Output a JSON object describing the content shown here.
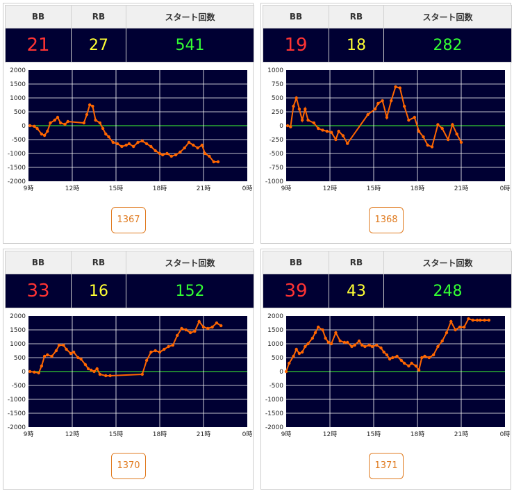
{
  "headers": {
    "bb": "BB",
    "rb": "RB",
    "start": "スタート回数"
  },
  "chart_data": [
    {
      "type": "line",
      "ylim": [
        -2000,
        2000
      ],
      "yticks": [
        2000,
        1500,
        1000,
        500,
        0,
        -500,
        -1000,
        -1500,
        -2000
      ],
      "xticks": [
        "9時",
        "12時",
        "15時",
        "18時",
        "21時",
        "0時"
      ],
      "xlim": [
        9,
        24
      ],
      "stats": {
        "bb": "21",
        "rb": "27",
        "start": "541"
      },
      "machine": "1367",
      "x": [
        9.1,
        9.4,
        9.6,
        9.9,
        10.1,
        10.3,
        10.5,
        10.8,
        11.0,
        11.2,
        11.5,
        11.7,
        12.8,
        13.0,
        13.2,
        13.4,
        13.6,
        13.9,
        14.1,
        14.3,
        14.5,
        14.8,
        15.1,
        15.4,
        15.7,
        15.9,
        16.2,
        16.5,
        16.8,
        17.1,
        17.4,
        17.7,
        18.0,
        18.2,
        18.5,
        18.8,
        19.1,
        19.4,
        19.7,
        20.0,
        20.3,
        20.6,
        20.9,
        21.1,
        21.4,
        21.7,
        22.0
      ],
      "y": [
        0,
        -20,
        -100,
        -300,
        -350,
        -200,
        100,
        200,
        300,
        100,
        50,
        150,
        100,
        400,
        750,
        700,
        200,
        100,
        -100,
        -300,
        -400,
        -600,
        -650,
        -750,
        -700,
        -650,
        -750,
        -600,
        -550,
        -650,
        -750,
        -900,
        -1000,
        -1050,
        -1000,
        -1100,
        -1050,
        -950,
        -800,
        -600,
        -700,
        -800,
        -700,
        -1000,
        -1100,
        -1300,
        -1300
      ]
    },
    {
      "type": "line",
      "ylim": [
        -1000,
        1000
      ],
      "yticks": [
        1000,
        750,
        500,
        250,
        0,
        -250,
        -500,
        -750,
        -1000
      ],
      "xticks": [
        "9時",
        "12時",
        "15時",
        "18時",
        "21時",
        "0時"
      ],
      "xlim": [
        9,
        24
      ],
      "stats": {
        "bb": "19",
        "rb": "18",
        "start": "282"
      },
      "machine": "1368",
      "x": [
        9.1,
        9.3,
        9.5,
        9.7,
        9.9,
        10.1,
        10.3,
        10.5,
        10.9,
        11.2,
        11.5,
        11.8,
        12.1,
        12.4,
        12.6,
        12.9,
        13.2,
        14.6,
        15.1,
        15.3,
        15.6,
        15.9,
        16.2,
        16.5,
        16.8,
        17.1,
        17.4,
        17.8,
        18.1,
        18.4,
        18.7,
        19.0,
        19.4,
        19.7,
        20.1,
        20.4,
        20.7,
        21.0
      ],
      "y": [
        0,
        -20,
        350,
        500,
        300,
        100,
        300,
        100,
        50,
        -50,
        -80,
        -100,
        -120,
        -250,
        -100,
        -180,
        -320,
        200,
        300,
        400,
        450,
        150,
        450,
        700,
        680,
        350,
        100,
        150,
        -100,
        -200,
        -350,
        -380,
        20,
        -50,
        -250,
        20,
        -150,
        -300
      ]
    },
    {
      "type": "line",
      "ylim": [
        -2000,
        2000
      ],
      "yticks": [
        2000,
        1500,
        1000,
        500,
        0,
        -500,
        -1000,
        -1500,
        -2000
      ],
      "xticks": [
        "9時",
        "12時",
        "15時",
        "18時",
        "21時",
        "0時"
      ],
      "xlim": [
        9,
        24
      ],
      "stats": {
        "bb": "33",
        "rb": "16",
        "start": "152"
      },
      "machine": "1370",
      "x": [
        9.1,
        9.4,
        9.7,
        9.9,
        10.1,
        10.3,
        10.6,
        10.9,
        11.1,
        11.4,
        11.6,
        11.9,
        12.1,
        12.4,
        12.6,
        12.9,
        13.1,
        13.3,
        13.5,
        13.7,
        13.9,
        14.3,
        14.6,
        16.8,
        17.1,
        17.4,
        17.7,
        18.0,
        18.3,
        18.6,
        18.9,
        19.2,
        19.5,
        19.8,
        20.1,
        20.4,
        20.7,
        21.0,
        21.3,
        21.6,
        21.9,
        22.2
      ],
      "y": [
        0,
        -20,
        -50,
        200,
        550,
        600,
        550,
        750,
        950,
        950,
        800,
        650,
        700,
        500,
        450,
        250,
        100,
        50,
        0,
        100,
        -100,
        -150,
        -150,
        -100,
        400,
        700,
        750,
        700,
        800,
        900,
        950,
        1300,
        1550,
        1500,
        1400,
        1450,
        1800,
        1600,
        1550,
        1600,
        1750,
        1650
      ]
    },
    {
      "type": "line",
      "ylim": [
        -2000,
        2000
      ],
      "yticks": [
        2000,
        1500,
        1000,
        500,
        0,
        -500,
        -1000,
        -1500,
        -2000
      ],
      "xticks": [
        "9時",
        "12時",
        "15時",
        "18時",
        "21時",
        "0時"
      ],
      "xlim": [
        9,
        24
      ],
      "stats": {
        "bb": "39",
        "rb": "43",
        "start": "248"
      },
      "machine": "1371",
      "x": [
        9.0,
        9.2,
        9.5,
        9.7,
        9.9,
        10.1,
        10.3,
        10.5,
        10.8,
        11.0,
        11.2,
        11.5,
        11.7,
        11.9,
        12.1,
        12.4,
        12.7,
        13.0,
        13.2,
        13.5,
        13.7,
        14.0,
        14.2,
        14.4,
        14.7,
        14.9,
        15.2,
        15.5,
        15.7,
        15.9,
        16.1,
        16.3,
        16.6,
        16.9,
        17.1,
        17.4,
        17.6,
        17.9,
        18.1,
        18.3,
        18.5,
        18.8,
        19.1,
        19.4,
        19.7,
        20.0,
        20.3,
        20.6,
        20.9,
        21.2,
        21.5,
        21.8,
        22.1,
        22.3,
        22.6,
        22.9
      ],
      "y": [
        0,
        300,
        550,
        800,
        650,
        700,
        900,
        1000,
        1200,
        1400,
        1600,
        1500,
        1200,
        1050,
        1000,
        1400,
        1100,
        1050,
        1050,
        900,
        950,
        1100,
        950,
        900,
        950,
        900,
        950,
        850,
        700,
        600,
        450,
        500,
        550,
        400,
        300,
        200,
        300,
        200,
        50,
        500,
        550,
        500,
        600,
        900,
        1100,
        1400,
        1800,
        1500,
        1600,
        1600,
        1900,
        1850,
        1850,
        1850,
        1850,
        1850
      ]
    }
  ]
}
